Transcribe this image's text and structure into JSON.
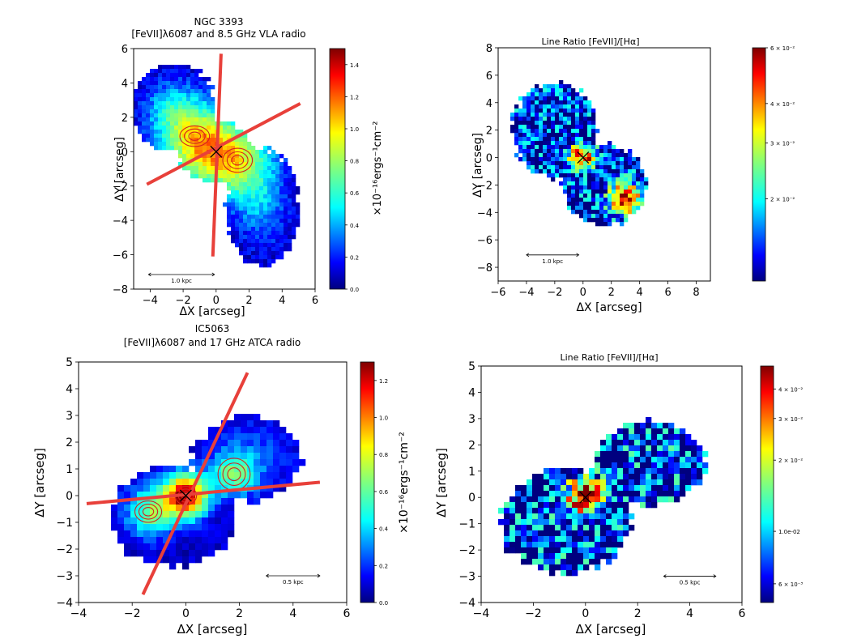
{
  "chart_data": [
    {
      "type": "heatmap",
      "title": "NGC 3393",
      "subtitle": "[FeVII]λ6087 and 8.5 GHz VLA radio",
      "xlabel": "ΔX [arcseg]",
      "ylabel": "ΔY [arcseg]",
      "xlim": [
        -5,
        6
      ],
      "ylim": [
        -8,
        6
      ],
      "xticks": [
        "−4",
        "−2",
        "0",
        "2",
        "4",
        "6"
      ],
      "yticks": [
        "−8",
        "−6",
        "−4",
        "−2",
        "0",
        "2",
        "4",
        "6"
      ],
      "colorbar": {
        "label": "×10⁻¹⁶ergs⁻¹cm⁻²",
        "min": 0.0,
        "max": 1.5,
        "ticks": [
          "0.0",
          "0.2",
          "0.4",
          "0.6",
          "0.8",
          "1.0",
          "1.2",
          "1.4"
        ],
        "scale": "linear"
      },
      "scalebar": "1.0 kpc",
      "emission": {
        "blobs": [
          {
            "x": -1.2,
            "y": 0.6,
            "sx": 2.2,
            "sy": 2.2,
            "value": 0.85
          },
          {
            "x": 1.2,
            "y": -0.6,
            "sx": 2.2,
            "sy": 2.2,
            "value": 0.75
          },
          {
            "x": -2.8,
            "y": 2.6,
            "sx": 1.6,
            "sy": 1.6,
            "value": 0.3
          },
          {
            "x": 2.8,
            "y": -3.4,
            "sx": 1.5,
            "sy": 2.2,
            "value": 0.25
          }
        ],
        "regions": [
          {
            "x": -2.6,
            "y": 2.6,
            "rx": 2.6,
            "ry": 2.5
          },
          {
            "x": 0,
            "y": 0,
            "rx": 2.3,
            "ry": 1.8
          },
          {
            "x": 2.8,
            "y": -3.2,
            "rx": 2.2,
            "ry": 3.4
          }
        ]
      },
      "radio_contours": [
        {
          "x": -1.3,
          "y": 0.9,
          "rx": 0.9,
          "ry": 0.6
        },
        {
          "x": 1.3,
          "y": -0.5,
          "rx": 0.9,
          "ry": 0.7
        }
      ],
      "cone_lines": [
        {
          "x1": -4.2,
          "y1": -1.9,
          "x2": 5.1,
          "y2": 2.8
        },
        {
          "x1": 0.3,
          "y1": 5.7,
          "x2": -0.2,
          "y2": -6.1
        }
      ],
      "marker": {
        "x": 0,
        "y": 0,
        "symbol": "x"
      }
    },
    {
      "type": "heatmap",
      "title": "Line Ratio [FeVII]/[Hα]",
      "xlabel": "ΔX [arcseg]",
      "ylabel": "ΔY [arcseg]",
      "xlim": [
        -6,
        9
      ],
      "ylim": [
        -9,
        8
      ],
      "xticks": [
        "−6",
        "−4",
        "−2",
        "0",
        "2",
        "4",
        "6",
        "8"
      ],
      "yticks": [
        "−8",
        "−6",
        "−4",
        "−2",
        "0",
        "2",
        "4",
        "6",
        "8"
      ],
      "colorbar": {
        "label": "",
        "min": 0.011,
        "max": 0.06,
        "ticks": [
          "6 × 10⁻²",
          "4 × 10⁻²",
          "3 × 10⁻²",
          "2 × 10⁻²"
        ],
        "scale": "log"
      },
      "scalebar": "1.0 kpc",
      "emission": {
        "blobs": [
          {
            "x": 0,
            "y": 0,
            "sx": 0.9,
            "sy": 0.9,
            "value": 0.045
          },
          {
            "x": 3,
            "y": -3,
            "sx": 1.0,
            "sy": 1.0,
            "value": 0.05
          }
        ],
        "regions": [
          {
            "x": -2,
            "y": 2,
            "rx": 3.0,
            "ry": 3.5
          },
          {
            "x": 1.5,
            "y": -2,
            "rx": 3.0,
            "ry": 3.0
          }
        ]
      },
      "marker": {
        "x": 0,
        "y": 0,
        "symbol": "x"
      }
    },
    {
      "type": "heatmap",
      "title": "IC5063",
      "subtitle": "[FeVII]λ6087 and 17 GHz ATCA radio",
      "xlabel": "ΔX [arcseg]",
      "ylabel": "ΔY [arcseg]",
      "xlim": [
        -4,
        6
      ],
      "ylim": [
        -4,
        5
      ],
      "xticks": [
        "−4",
        "−2",
        "0",
        "2",
        "4",
        "6"
      ],
      "yticks": [
        "−4",
        "−3",
        "−2",
        "−1",
        "0",
        "1",
        "2",
        "3",
        "4",
        "5"
      ],
      "colorbar": {
        "label": "×10⁻¹⁶ergs⁻¹cm⁻²",
        "min": 0.0,
        "max": 1.3,
        "ticks": [
          "0.0",
          "0.2",
          "0.4",
          "0.6",
          "0.8",
          "1.0",
          "1.2"
        ],
        "scale": "linear"
      },
      "scalebar": "0.5 kpc",
      "emission": {
        "blobs": [
          {
            "x": 0,
            "y": 0,
            "sx": 0.8,
            "sy": 0.8,
            "value": 1.2
          },
          {
            "x": -1.3,
            "y": -0.6,
            "sx": 0.9,
            "sy": 0.9,
            "value": 0.55
          },
          {
            "x": 1.8,
            "y": 0.8,
            "sx": 0.8,
            "sy": 0.8,
            "value": 0.5
          },
          {
            "x": 2.5,
            "y": 1.5,
            "sx": 1.5,
            "sy": 1.2,
            "value": 0.15
          }
        ],
        "regions": [
          {
            "x": -0.5,
            "y": -0.8,
            "rx": 2.3,
            "ry": 1.9
          },
          {
            "x": 2.3,
            "y": 1.4,
            "rx": 2.0,
            "ry": 1.6
          }
        ]
      },
      "radio_contours": [
        {
          "x": -1.4,
          "y": -0.6,
          "rx": 0.5,
          "ry": 0.4
        },
        {
          "x": 0,
          "y": 0,
          "rx": 0.4,
          "ry": 0.35
        },
        {
          "x": 1.8,
          "y": 0.8,
          "rx": 0.6,
          "ry": 0.6
        }
      ],
      "cone_lines": [
        {
          "x1": -3.7,
          "y1": -0.3,
          "x2": 5.0,
          "y2": 0.5
        },
        {
          "x1": -1.6,
          "y1": -3.7,
          "x2": 2.3,
          "y2": 4.6
        }
      ],
      "marker": {
        "x": 0,
        "y": 0,
        "symbol": "x"
      }
    },
    {
      "type": "heatmap",
      "title": "Line Ratio [FeVII]/[Hα]",
      "xlabel": "ΔX [arcseg]",
      "ylabel": "ΔY [arcseg]",
      "xlim": [
        -4,
        6
      ],
      "ylim": [
        -4,
        5
      ],
      "xticks": [
        "−4",
        "−2",
        "0",
        "2",
        "4",
        "6"
      ],
      "yticks": [
        "−4",
        "−3",
        "−2",
        "−1",
        "0",
        "1",
        "2",
        "3",
        "4",
        "5"
      ],
      "colorbar": {
        "label": "",
        "min": 0.005,
        "max": 0.05,
        "ticks": [
          "4 × 10⁻²",
          "3 × 10⁻²",
          "2 × 10⁻²",
          "1.0e-02",
          "6 × 10⁻³"
        ],
        "scale": "log"
      },
      "scalebar": "0.5 kpc",
      "emission": {
        "blobs": [
          {
            "x": 0,
            "y": 0,
            "sx": 0.6,
            "sy": 0.6,
            "value": 0.04
          }
        ],
        "regions": [
          {
            "x": -0.8,
            "y": -0.9,
            "rx": 2.5,
            "ry": 2.0
          },
          {
            "x": 2.5,
            "y": 1.3,
            "rx": 2.2,
            "ry": 1.6
          }
        ]
      },
      "marker": {
        "x": 0,
        "y": 0,
        "symbol": "x"
      }
    }
  ]
}
